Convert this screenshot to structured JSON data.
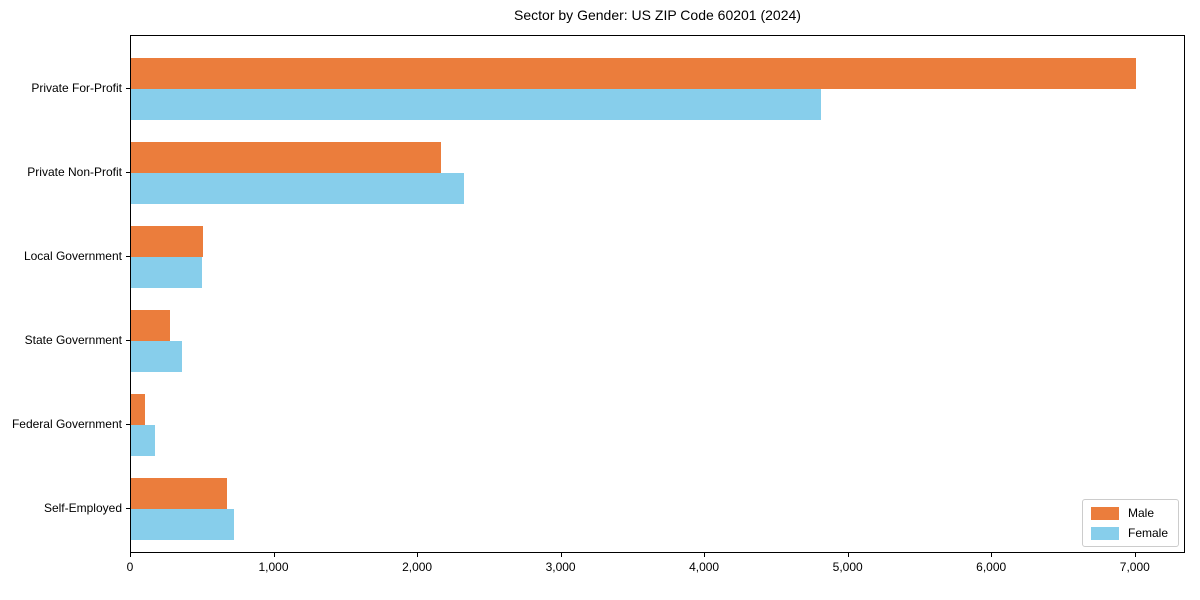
{
  "chart_data": {
    "type": "bar",
    "orientation": "horizontal",
    "title": "Sector by Gender: US ZIP Code 60201 (2024)",
    "categories": [
      "Private For-Profit",
      "Private Non-Profit",
      "Local Government",
      "State Government",
      "Federal Government",
      "Self-Employed"
    ],
    "series": [
      {
        "name": "Male",
        "color": "#eb7d3c",
        "values": [
          7000,
          2160,
          500,
          270,
          95,
          665
        ]
      },
      {
        "name": "Female",
        "color": "#87ceeb",
        "values": [
          4810,
          2320,
          495,
          355,
          165,
          715
        ]
      }
    ],
    "xlabel": "",
    "ylabel": "",
    "xlim": [
      0,
      7350
    ],
    "xticks": [
      0,
      1000,
      2000,
      3000,
      4000,
      5000,
      6000,
      7000
    ],
    "xtick_labels": [
      "0",
      "1,000",
      "2,000",
      "3,000",
      "4,000",
      "5,000",
      "6,000",
      "7,000"
    ],
    "grid": false,
    "legend": {
      "position": "lower right",
      "entries": [
        "Male",
        "Female"
      ]
    }
  }
}
